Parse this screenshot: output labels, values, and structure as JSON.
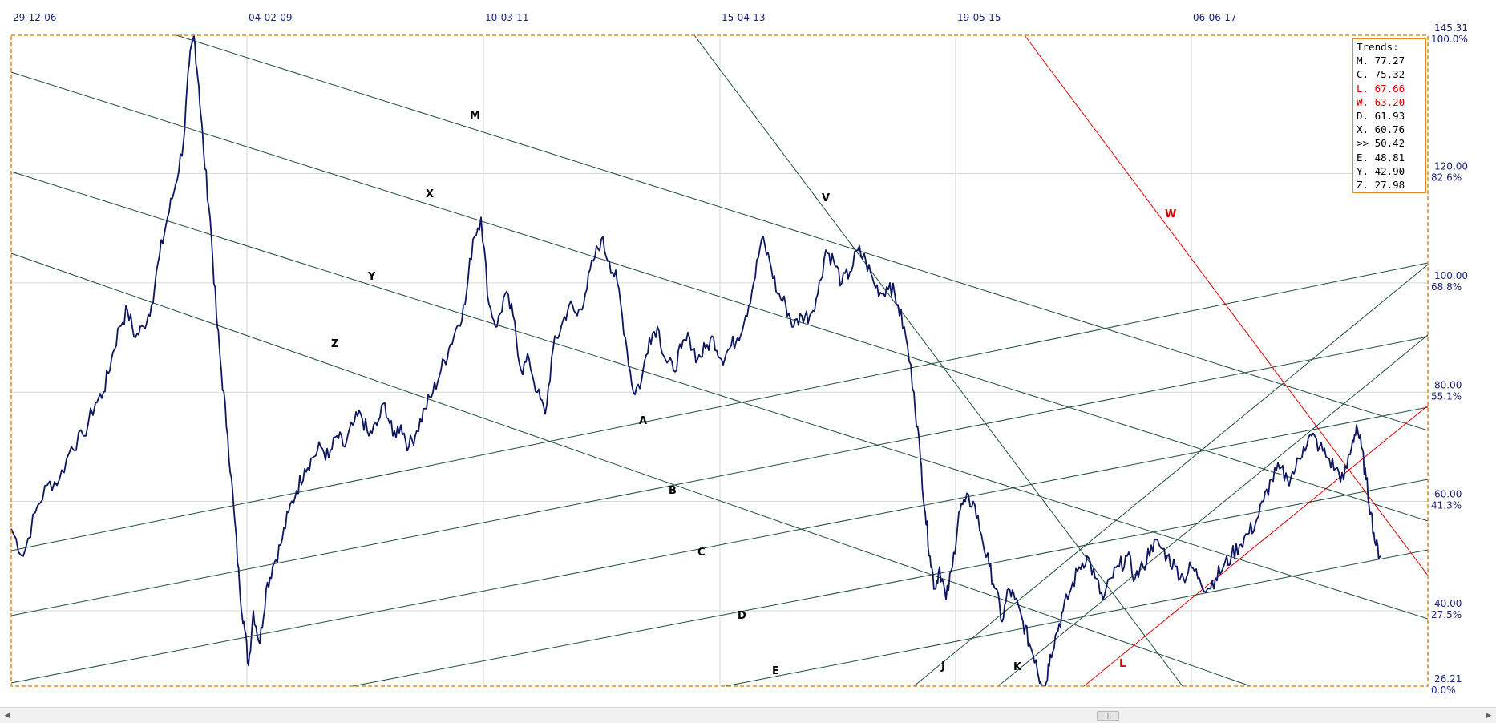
{
  "chart_data": {
    "type": "line",
    "title": "",
    "x_ticks": [
      "29-12-06",
      "04-02-09",
      "10-03-11",
      "15-04-13",
      "19-05-15",
      "06-06-17"
    ],
    "y_ticks": [
      {
        "value": "145.31",
        "pct": "100.0%"
      },
      {
        "value": "120.00",
        "pct": "82.6%"
      },
      {
        "value": "100.00",
        "pct": "68.8%"
      },
      {
        "value": "80.00",
        "pct": "55.1%"
      },
      {
        "value": "60.00",
        "pct": "41.3%"
      },
      {
        "value": "40.00",
        "pct": "27.5%"
      },
      {
        "value": "26.21",
        "pct": "0.0%"
      }
    ],
    "ylim": [
      26.21,
      145.31
    ],
    "grid": true,
    "series": [
      {
        "values": [
          [
            0,
            55
          ],
          [
            15,
            50
          ],
          [
            30,
            58
          ],
          [
            45,
            63
          ],
          [
            60,
            64
          ],
          [
            75,
            70
          ],
          [
            90,
            72
          ],
          [
            105,
            78
          ],
          [
            115,
            80
          ],
          [
            125,
            86
          ],
          [
            135,
            92
          ],
          [
            145,
            95
          ],
          [
            155,
            90
          ],
          [
            165,
            92
          ],
          [
            175,
            96
          ],
          [
            185,
            105
          ],
          [
            195,
            112
          ],
          [
            205,
            118
          ],
          [
            215,
            126
          ],
          [
            222,
            140
          ],
          [
            228,
            145.3
          ],
          [
            234,
            136
          ],
          [
            240,
            124
          ],
          [
            248,
            112
          ],
          [
            256,
            94
          ],
          [
            262,
            84
          ],
          [
            270,
            72
          ],
          [
            278,
            58
          ],
          [
            285,
            44
          ],
          [
            290,
            38
          ],
          [
            296,
            30
          ],
          [
            302,
            40
          ],
          [
            310,
            34
          ],
          [
            318,
            44
          ],
          [
            326,
            48
          ],
          [
            336,
            52
          ],
          [
            346,
            58
          ],
          [
            356,
            62
          ],
          [
            366,
            66
          ],
          [
            376,
            68
          ],
          [
            386,
            70
          ],
          [
            396,
            68
          ],
          [
            406,
            72
          ],
          [
            416,
            70
          ],
          [
            426,
            74
          ],
          [
            436,
            76
          ],
          [
            446,
            72
          ],
          [
            456,
            74
          ],
          [
            466,
            78
          ],
          [
            476,
            72
          ],
          [
            486,
            74
          ],
          [
            496,
            70
          ],
          [
            506,
            73
          ],
          [
            516,
            77
          ],
          [
            526,
            80
          ],
          [
            536,
            84
          ],
          [
            546,
            88
          ],
          [
            556,
            92
          ],
          [
            566,
            96
          ],
          [
            576,
            108
          ],
          [
            586,
            112
          ],
          [
            596,
            96
          ],
          [
            606,
            92
          ],
          [
            616,
            98
          ],
          [
            626,
            94
          ],
          [
            636,
            84
          ],
          [
            646,
            86
          ],
          [
            656,
            80
          ],
          [
            666,
            76
          ],
          [
            676,
            88
          ],
          [
            686,
            92
          ],
          [
            696,
            96
          ],
          [
            706,
            94
          ],
          [
            716,
            98
          ],
          [
            726,
            104
          ],
          [
            736,
            108
          ],
          [
            746,
            104
          ],
          [
            756,
            100
          ],
          [
            766,
            90
          ],
          [
            776,
            80
          ],
          [
            786,
            82
          ],
          [
            796,
            90
          ],
          [
            806,
            92
          ],
          [
            816,
            86
          ],
          [
            826,
            84
          ],
          [
            836,
            88
          ],
          [
            846,
            90
          ],
          [
            856,
            86
          ],
          [
            866,
            88
          ],
          [
            876,
            90
          ],
          [
            886,
            86
          ],
          [
            896,
            88
          ],
          [
            906,
            90
          ],
          [
            916,
            94
          ],
          [
            926,
            100
          ],
          [
            936,
            108
          ],
          [
            946,
            104
          ],
          [
            956,
            98
          ],
          [
            966,
            96
          ],
          [
            976,
            92
          ],
          [
            986,
            94
          ],
          [
            996,
            94
          ],
          [
            1006,
            98
          ],
          [
            1016,
            106
          ],
          [
            1026,
            104
          ],
          [
            1036,
            100
          ],
          [
            1046,
            102
          ],
          [
            1056,
            106
          ],
          [
            1066,
            104
          ],
          [
            1076,
            100
          ],
          [
            1086,
            98
          ],
          [
            1096,
            100
          ],
          [
            1106,
            96
          ],
          [
            1116,
            90
          ],
          [
            1126,
            80
          ],
          [
            1134,
            68
          ],
          [
            1140,
            58
          ],
          [
            1146,
            50
          ],
          [
            1152,
            44
          ],
          [
            1158,
            48
          ],
          [
            1166,
            42
          ],
          [
            1174,
            48
          ],
          [
            1182,
            58
          ],
          [
            1190,
            60
          ],
          [
            1200,
            60
          ],
          [
            1210,
            54
          ],
          [
            1220,
            48
          ],
          [
            1228,
            44
          ],
          [
            1236,
            38
          ],
          [
            1244,
            44
          ],
          [
            1252,
            42
          ],
          [
            1262,
            38
          ],
          [
            1270,
            34
          ],
          [
            1278,
            31
          ],
          [
            1284,
            27
          ],
          [
            1290,
            26.3
          ],
          [
            1296,
            32
          ],
          [
            1304,
            36
          ],
          [
            1312,
            40
          ],
          [
            1322,
            44
          ],
          [
            1332,
            48
          ],
          [
            1342,
            50
          ],
          [
            1352,
            46
          ],
          [
            1362,
            42
          ],
          [
            1372,
            46
          ],
          [
            1382,
            48
          ],
          [
            1392,
            50
          ],
          [
            1402,
            46
          ],
          [
            1412,
            48
          ],
          [
            1422,
            52
          ],
          [
            1432,
            52
          ],
          [
            1442,
            50
          ],
          [
            1452,
            48
          ],
          [
            1462,
            46
          ],
          [
            1472,
            48
          ],
          [
            1482,
            46
          ],
          [
            1492,
            44
          ],
          [
            1502,
            46
          ],
          [
            1512,
            48
          ],
          [
            1522,
            50
          ],
          [
            1532,
            52
          ],
          [
            1542,
            54
          ],
          [
            1552,
            56
          ],
          [
            1562,
            60
          ],
          [
            1572,
            64
          ],
          [
            1582,
            66
          ],
          [
            1592,
            64
          ],
          [
            1602,
            66
          ],
          [
            1612,
            70
          ],
          [
            1622,
            72
          ],
          [
            1632,
            70
          ],
          [
            1642,
            68
          ],
          [
            1652,
            66
          ],
          [
            1662,
            64
          ],
          [
            1672,
            70
          ],
          [
            1678,
            74
          ],
          [
            1684,
            70
          ],
          [
            1690,
            64
          ],
          [
            1696,
            58
          ],
          [
            1702,
            52
          ],
          [
            1708,
            50
          ]
        ]
      }
    ],
    "trend_lines": [
      {
        "label": "M",
        "color": "#1f4b3f"
      },
      {
        "label": "X",
        "color": "#1f4b3f"
      },
      {
        "label": "Y",
        "color": "#1f4b3f"
      },
      {
        "label": "Z",
        "color": "#1f4b3f"
      },
      {
        "label": "A",
        "color": "#1f4b3f"
      },
      {
        "label": "B",
        "color": "#1f4b3f"
      },
      {
        "label": "C",
        "color": "#1f4b3f"
      },
      {
        "label": "D",
        "color": "#1f4b3f"
      },
      {
        "label": "E",
        "color": "#1f4b3f"
      },
      {
        "label": "V",
        "color": "#1f4b3f"
      },
      {
        "label": "W",
        "color": "#e00000"
      },
      {
        "label": "J",
        "color": "#1f4b3f"
      },
      {
        "label": "K",
        "color": "#1f4b3f"
      },
      {
        "label": "L",
        "color": "#e00000"
      }
    ],
    "trends_panel": {
      "title": "Trends:",
      "rows": [
        {
          "label": "M.",
          "value": "77.27",
          "red": false
        },
        {
          "label": "C.",
          "value": "75.32",
          "red": false
        },
        {
          "label": "L.",
          "value": "67.66",
          "red": true
        },
        {
          "label": "W.",
          "value": "63.20",
          "red": true
        },
        {
          "label": "D.",
          "value": "61.93",
          "red": false
        },
        {
          "label": "X.",
          "value": "60.76",
          "red": false
        },
        {
          "label": ">>",
          "value": "50.42",
          "red": false
        },
        {
          "label": "E.",
          "value": "48.81",
          "red": false
        },
        {
          "label": "Y.",
          "value": "42.90",
          "red": false
        },
        {
          "label": "Z.",
          "value": "27.98",
          "red": false
        }
      ]
    }
  },
  "colors": {
    "price_line": "#0d1660",
    "trend_green": "#1f4b3f",
    "trend_red": "#e00000",
    "frame": "#e08a1e",
    "grid": "#d6d6d6",
    "axis_text": "#1a237e"
  },
  "scrollbar": {
    "left_icon": "arrow-left-icon",
    "right_icon": "arrow-right-icon",
    "thumb_icon": "grip-icon",
    "left_glyph": "◀",
    "right_glyph": "▶",
    "thumb_glyph": "|||"
  }
}
